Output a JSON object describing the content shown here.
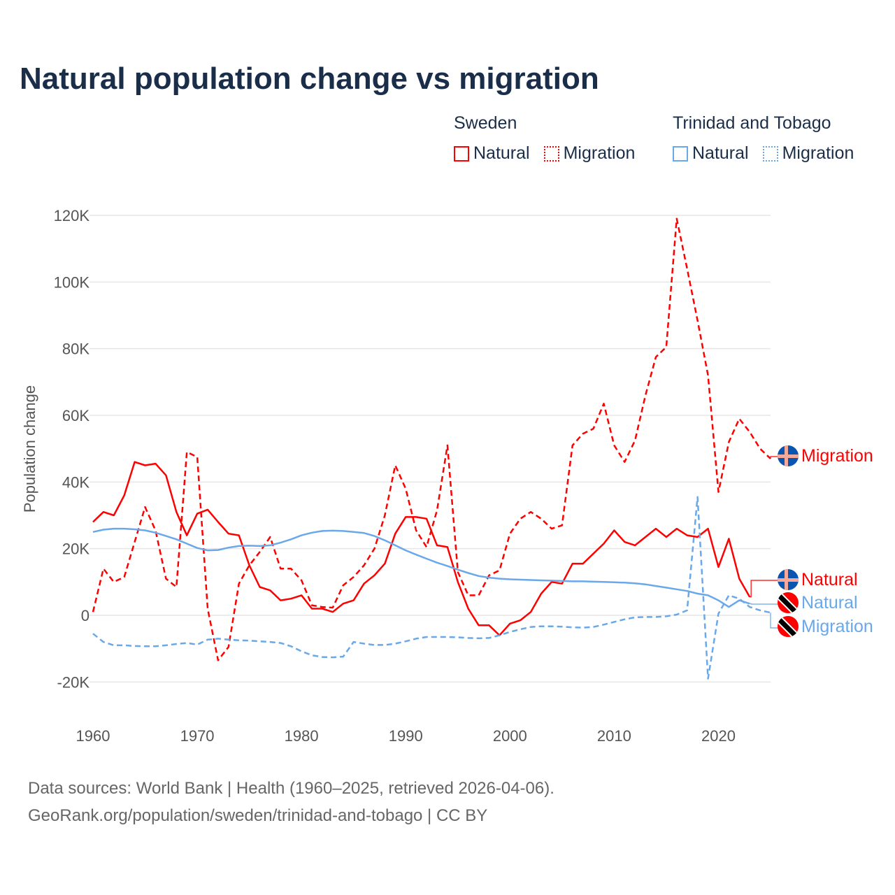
{
  "chart_data": {
    "type": "line",
    "title": "Natural population change vs migration",
    "ylabel": "Population change",
    "xlabel": "",
    "xlim": [
      1960,
      2025
    ],
    "ylim": [
      -30000,
      125000
    ],
    "x_ticks": [
      1960,
      1970,
      1980,
      1990,
      2000,
      2010,
      2020
    ],
    "y_ticks": [
      -20000,
      0,
      20000,
      40000,
      60000,
      80000,
      100000,
      120000
    ],
    "y_tick_labels": [
      "-20K",
      "0",
      "20K",
      "40K",
      "60K",
      "80K",
      "100K",
      "120K"
    ],
    "grid": true,
    "legend_groups": [
      {
        "country": "Sweden",
        "items": [
          "Natural",
          "Migration"
        ]
      },
      {
        "country": "Trinidad and Tobago",
        "items": [
          "Natural",
          "Migration"
        ]
      }
    ],
    "series": [
      {
        "name": "Sweden Natural",
        "country": "Sweden",
        "label": "Natural",
        "color": "#ff0000",
        "dash": false,
        "start_year": 1960,
        "values_k": [
          28,
          31,
          30,
          36,
          46,
          45,
          45.5,
          42,
          31,
          24,
          30.5,
          31.7,
          28,
          24.5,
          24,
          15,
          8.5,
          7.5,
          4.5,
          5,
          6,
          2,
          2,
          1,
          3.5,
          4.5,
          9.5,
          12,
          15.5,
          24.5,
          29.5,
          29.5,
          29,
          21,
          20.5,
          10,
          2,
          -3,
          -3,
          -6,
          -2.5,
          -1.5,
          1,
          6.5,
          10,
          9.5,
          15.5,
          15.5,
          18.5,
          21.5,
          25.5,
          22,
          21,
          23.5,
          26,
          23.5,
          26,
          24,
          23.5,
          26,
          14.5,
          23,
          11,
          5.5
        ]
      },
      {
        "name": "Sweden Migration",
        "country": "Sweden",
        "label": "Migration",
        "color": "#ff0000",
        "dash": true,
        "start_year": 1960,
        "values_k": [
          1,
          14,
          10,
          11.5,
          22,
          32.5,
          25.5,
          11,
          8.5,
          49,
          47.5,
          2,
          -13.5,
          -9.5,
          9.5,
          15,
          19,
          23.5,
          14,
          14,
          10.5,
          3,
          2.5,
          2.3,
          9,
          11.5,
          15,
          20,
          30,
          45,
          38,
          25.5,
          20.5,
          31.5,
          51,
          13,
          6,
          6,
          12,
          13.5,
          24.5,
          29,
          31,
          29,
          26,
          27,
          51,
          54.5,
          56,
          63.5,
          51,
          46,
          52.5,
          66,
          77.5,
          80.5,
          119,
          104,
          88.5,
          72,
          37,
          52,
          59,
          55,
          50,
          47
        ]
      },
      {
        "name": "Trinidad and Tobago Natural",
        "country": "Trinidad and Tobago",
        "label": "Natural",
        "color": "#6aa8ea",
        "dash": false,
        "start_year": 1960,
        "values_k": [
          25,
          25.7,
          26,
          26,
          25.8,
          25.5,
          24.8,
          23.8,
          22.8,
          21.5,
          20.2,
          19.5,
          19.6,
          20.3,
          20.8,
          20.9,
          20.8,
          21,
          21.8,
          22.8,
          24,
          24.8,
          25.3,
          25.4,
          25.3,
          25,
          24.7,
          23.8,
          22.5,
          21,
          19.5,
          18.2,
          17,
          15.8,
          14.8,
          13.7,
          12.7,
          11.8,
          11.3,
          11,
          10.8,
          10.7,
          10.6,
          10.5,
          10.4,
          10.3,
          10.2,
          10.2,
          10.1,
          10,
          9.9,
          9.8,
          9.6,
          9.3,
          8.8,
          8.3,
          7.8,
          7.3,
          6.5,
          6,
          4.5,
          2.5,
          4.5,
          3.5
        ]
      },
      {
        "name": "Trinidad and Tobago Migration",
        "country": "Trinidad and Tobago",
        "label": "Migration",
        "color": "#6aa8ea",
        "dash": true,
        "start_year": 1960,
        "values_k": [
          -5.5,
          -8,
          -9,
          -9,
          -9.2,
          -9.3,
          -9.3,
          -9,
          -8.6,
          -8.3,
          -8.8,
          -7.3,
          -7,
          -7.3,
          -7.5,
          -7.6,
          -7.8,
          -8,
          -8.3,
          -9.3,
          -10.8,
          -12,
          -12.5,
          -12.6,
          -12.4,
          -8,
          -8.5,
          -8.9,
          -8.9,
          -8.5,
          -7.8,
          -7,
          -6.5,
          -6.5,
          -6.5,
          -6.6,
          -6.8,
          -6.9,
          -6.8,
          -6,
          -5,
          -4.2,
          -3.5,
          -3.3,
          -3.3,
          -3.4,
          -3.6,
          -3.7,
          -3.5,
          -2.8,
          -2,
          -1.2,
          -0.6,
          -0.5,
          -0.5,
          -0.3,
          0.2,
          1.5,
          35.5,
          -19,
          0.5,
          6,
          5,
          2.5,
          1.5,
          0.8
        ]
      }
    ]
  },
  "legend": {
    "sweden": {
      "heading": "Sweden",
      "natural": "Natural",
      "migration": "Migration"
    },
    "tt": {
      "heading": "Trinidad and Tobago",
      "natural": "Natural",
      "migration": "Migration"
    }
  },
  "end_labels": {
    "se_migration": "Migration",
    "se_natural": "Natural",
    "tt_natural": "Natural",
    "tt_migration": "Migration"
  },
  "footer": {
    "line1": "Data sources: World Bank | Health (1960–2025, retrieved 2026-04-06).",
    "line2": "GeoRank.org/population/sweden/trinidad-and-tobago | CC BY"
  }
}
